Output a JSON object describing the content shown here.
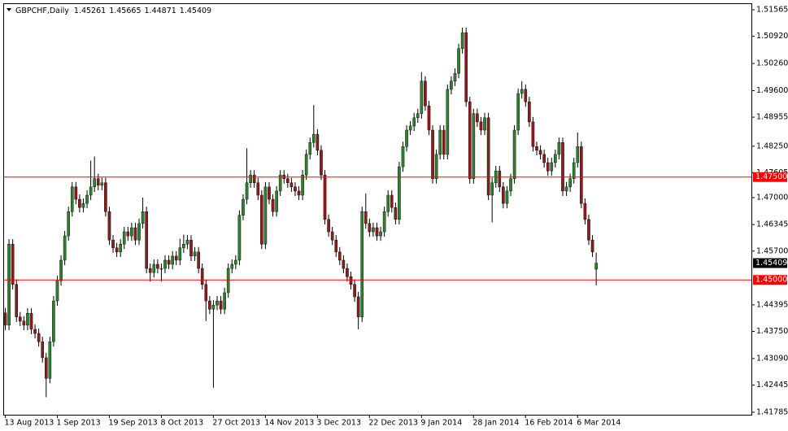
{
  "chart_data": {
    "type": "candlestick",
    "title": "GBPCHF,Daily",
    "categories": [
      "13 Aug 2013",
      null,
      null,
      null,
      null,
      null,
      null,
      null,
      null,
      null,
      null,
      null,
      null,
      null,
      "1 Sep 2013",
      null,
      null,
      null,
      null,
      null,
      null,
      null,
      null,
      null,
      null,
      null,
      null,
      null,
      "19 Sep 2013",
      null,
      null,
      null,
      null,
      null,
      null,
      null,
      null,
      null,
      null,
      null,
      null,
      null,
      "8 Oct 2013",
      null,
      null,
      null,
      null,
      null,
      null,
      null,
      null,
      null,
      null,
      null,
      null,
      null,
      "27 Oct 2013",
      null,
      null,
      null,
      null,
      null,
      null,
      null,
      null,
      null,
      null,
      null,
      null,
      null,
      "14 Nov 2013",
      null,
      null,
      null,
      null,
      null,
      null,
      null,
      null,
      null,
      null,
      null,
      null,
      null,
      "3 Dec 2013",
      null,
      null,
      null,
      null,
      null,
      null,
      null,
      null,
      null,
      null,
      null,
      null,
      null,
      "22 Dec 2013",
      null,
      null,
      null,
      null,
      null,
      null,
      null,
      null,
      null,
      null,
      null,
      null,
      null,
      "9 Jan 2014",
      null,
      null,
      null,
      null,
      null,
      null,
      null,
      null,
      null,
      null,
      null,
      null,
      null,
      "28 Jan 2014",
      null,
      null,
      null,
      null,
      null,
      null,
      null,
      null,
      null,
      null,
      null,
      null,
      null,
      "16 Feb 2014",
      null,
      null,
      null,
      null,
      null,
      null,
      null,
      null,
      null,
      null,
      null,
      null,
      null,
      "6 Mar 2014",
      null,
      null,
      null,
      null,
      null
    ],
    "open": [
      1.442,
      1.439,
      1.4587,
      1.4489,
      1.441,
      1.44,
      1.439,
      1.4419,
      1.438,
      1.437,
      1.435,
      1.4311,
      1.4261,
      1.435,
      1.4449,
      1.4498,
      1.4548,
      1.4607,
      1.4666,
      1.4726,
      1.4696,
      1.4676,
      1.4686,
      1.4706,
      1.4726,
      1.4746,
      1.473,
      1.4736,
      1.4666,
      1.4597,
      1.4578,
      1.4568,
      1.4587,
      1.4617,
      1.4607,
      1.4627,
      1.4597,
      1.4637,
      1.4666,
      1.4528,
      1.4518,
      1.4538,
      1.4528,
      1.4528,
      1.4548,
      1.4538,
      1.4558,
      1.4548,
      1.4578,
      1.4587,
      1.4597,
      1.4558,
      1.4568,
      1.4528,
      1.4489,
      1.4449,
      1.4429,
      1.4439,
      1.4449,
      1.4429,
      1.4469,
      1.4528,
      1.4538,
      1.4548,
      1.4657,
      1.4696,
      1.4736,
      1.4755,
      1.4736,
      1.4706,
      1.4587,
      1.4726,
      1.4696,
      1.4666,
      1.4716,
      1.4755,
      1.4746,
      1.4736,
      1.4726,
      1.4716,
      1.4706,
      1.4755,
      1.4805,
      1.4834,
      1.4854,
      1.4815,
      1.4755,
      1.4647,
      1.4617,
      1.4597,
      1.4568,
      1.4548,
      1.4528,
      1.4508,
      1.4489,
      1.4459,
      1.441,
      1.4666,
      1.4637,
      1.4617,
      1.4627,
      1.4607,
      1.4617,
      1.4666,
      1.4706,
      1.4676,
      1.4647,
      1.4775,
      1.4824,
      1.4864,
      1.4874,
      1.4894,
      1.4904,
      1.4983,
      1.4923,
      1.4864,
      1.4746,
      1.4805,
      1.4864,
      1.4805,
      1.4963,
      1.4983,
      1.5002,
      1.5062,
      1.5101,
      1.4933,
      1.4746,
      1.4904,
      1.4884,
      1.4864,
      1.4894,
      1.4706,
      1.4736,
      1.4765,
      1.4726,
      1.4686,
      1.4716,
      1.4746,
      1.4864,
      1.4953,
      1.4963,
      1.4933,
      1.4884,
      1.4824,
      1.4815,
      1.4805,
      1.4785,
      1.4765,
      1.4785,
      1.4805,
      1.4834,
      1.4716,
      1.4726,
      1.4746,
      1.4785,
      1.4824,
      1.4686,
      1.4647,
      1.4597,
      1.45261
    ],
    "high": [
      1.4432,
      1.4599,
      1.4599,
      1.4501,
      1.4422,
      1.4412,
      1.4431,
      1.4431,
      1.4392,
      1.4382,
      1.4362,
      1.4323,
      1.4362,
      1.4461,
      1.451,
      1.456,
      1.4619,
      1.4678,
      1.4738,
      1.4738,
      1.4708,
      1.4698,
      1.4718,
      1.479,
      1.48,
      1.4758,
      1.4748,
      1.4748,
      1.4678,
      1.4609,
      1.459,
      1.4599,
      1.4629,
      1.4629,
      1.4639,
      1.4639,
      1.4649,
      1.47,
      1.4678,
      1.454,
      1.455,
      1.455,
      1.454,
      1.456,
      1.456,
      1.457,
      1.457,
      1.46,
      1.461,
      1.4609,
      1.4609,
      1.458,
      1.458,
      1.454,
      1.4501,
      1.4461,
      1.4451,
      1.4461,
      1.4461,
      1.4481,
      1.454,
      1.455,
      1.456,
      1.4669,
      1.4708,
      1.482,
      1.4767,
      1.4767,
      1.4748,
      1.4718,
      1.4738,
      1.4738,
      1.4708,
      1.4728,
      1.4767,
      1.4767,
      1.4758,
      1.4748,
      1.4738,
      1.4728,
      1.4767,
      1.4817,
      1.4846,
      1.4925,
      1.4866,
      1.4827,
      1.4767,
      1.4659,
      1.4629,
      1.4609,
      1.458,
      1.456,
      1.454,
      1.452,
      1.4501,
      1.4471,
      1.4678,
      1.471,
      1.4649,
      1.4639,
      1.4639,
      1.4629,
      1.4678,
      1.4718,
      1.4718,
      1.4688,
      1.4787,
      1.4836,
      1.4876,
      1.4886,
      1.4906,
      1.4916,
      1.5005,
      1.4995,
      1.4935,
      1.4876,
      1.4817,
      1.4876,
      1.4876,
      1.4975,
      1.4995,
      1.5014,
      1.5074,
      1.5113,
      1.5113,
      1.4945,
      1.4916,
      1.4916,
      1.4896,
      1.4906,
      1.4906,
      1.4748,
      1.4777,
      1.4777,
      1.4738,
      1.4728,
      1.4758,
      1.4876,
      1.4965,
      1.4983,
      1.4975,
      1.4945,
      1.4896,
      1.4836,
      1.4827,
      1.4817,
      1.4797,
      1.4797,
      1.4817,
      1.4846,
      1.4846,
      1.4738,
      1.4758,
      1.4797,
      1.4858,
      1.4836,
      1.4698,
      1.4659,
      1.4609,
      1.45665
    ],
    "low": [
      1.4378,
      1.4378,
      1.4477,
      1.4398,
      1.4388,
      1.4378,
      1.4378,
      1.4368,
      1.4358,
      1.4338,
      1.4299,
      1.4215,
      1.4249,
      1.4338,
      1.4437,
      1.4486,
      1.4536,
      1.4595,
      1.4654,
      1.4684,
      1.4664,
      1.4664,
      1.4674,
      1.4694,
      1.4714,
      1.4718,
      1.4718,
      1.4654,
      1.4585,
      1.4566,
      1.4556,
      1.4556,
      1.4575,
      1.4595,
      1.4595,
      1.4585,
      1.4585,
      1.4625,
      1.4516,
      1.4496,
      1.4506,
      1.4516,
      1.4496,
      1.4516,
      1.4526,
      1.4526,
      1.4536,
      1.4536,
      1.4566,
      1.4575,
      1.4546,
      1.4546,
      1.4516,
      1.4477,
      1.44,
      1.4417,
      1.4238,
      1.4427,
      1.4417,
      1.4417,
      1.4457,
      1.4516,
      1.4526,
      1.4536,
      1.4645,
      1.4684,
      1.4724,
      1.4724,
      1.4694,
      1.4575,
      1.4575,
      1.4684,
      1.4654,
      1.4654,
      1.4704,
      1.4734,
      1.4724,
      1.4714,
      1.4704,
      1.4694,
      1.4694,
      1.4743,
      1.4793,
      1.4822,
      1.4803,
      1.4743,
      1.4635,
      1.4605,
      1.4585,
      1.4556,
      1.4536,
      1.4516,
      1.4496,
      1.4477,
      1.4447,
      1.438,
      1.4398,
      1.4625,
      1.4605,
      1.4605,
      1.4595,
      1.4595,
      1.4605,
      1.4654,
      1.4664,
      1.4635,
      1.4635,
      1.4763,
      1.4812,
      1.4852,
      1.4862,
      1.4882,
      1.4892,
      1.4911,
      1.4852,
      1.4734,
      1.4734,
      1.4793,
      1.4793,
      1.4793,
      1.4951,
      1.4971,
      1.499,
      1.505,
      1.4921,
      1.4734,
      1.4734,
      1.4872,
      1.4852,
      1.4852,
      1.4694,
      1.464,
      1.4724,
      1.4714,
      1.4674,
      1.4674,
      1.4704,
      1.4734,
      1.4852,
      1.4941,
      1.4921,
      1.4872,
      1.4812,
      1.4803,
      1.4793,
      1.4773,
      1.4753,
      1.4753,
      1.4773,
      1.4793,
      1.4704,
      1.4704,
      1.4714,
      1.4734,
      1.4773,
      1.4674,
      1.4635,
      1.4585,
      1.4556,
      1.44871
    ],
    "close": [
      1.439,
      1.4587,
      1.4489,
      1.441,
      1.44,
      1.439,
      1.4419,
      1.438,
      1.437,
      1.435,
      1.4311,
      1.4261,
      1.435,
      1.4449,
      1.4498,
      1.4548,
      1.4607,
      1.4666,
      1.4726,
      1.4696,
      1.4676,
      1.4686,
      1.4706,
      1.4726,
      1.4746,
      1.473,
      1.4736,
      1.4666,
      1.4597,
      1.4578,
      1.4568,
      1.4587,
      1.4617,
      1.4607,
      1.4627,
      1.4597,
      1.4637,
      1.4666,
      1.4528,
      1.4518,
      1.4538,
      1.4528,
      1.4528,
      1.4548,
      1.4538,
      1.4558,
      1.4548,
      1.4578,
      1.4587,
      1.4597,
      1.4558,
      1.4568,
      1.4528,
      1.4489,
      1.4449,
      1.4429,
      1.4439,
      1.4449,
      1.4429,
      1.4469,
      1.4528,
      1.4538,
      1.4548,
      1.4657,
      1.4696,
      1.4736,
      1.4755,
      1.4736,
      1.4706,
      1.4587,
      1.4726,
      1.4696,
      1.4666,
      1.4716,
      1.4755,
      1.4746,
      1.4736,
      1.4726,
      1.4716,
      1.4706,
      1.4755,
      1.4805,
      1.4834,
      1.4854,
      1.4815,
      1.4755,
      1.4647,
      1.4617,
      1.4597,
      1.4568,
      1.4548,
      1.4528,
      1.4508,
      1.4489,
      1.4459,
      1.441,
      1.4666,
      1.4637,
      1.4617,
      1.4627,
      1.4607,
      1.4617,
      1.4666,
      1.4706,
      1.4676,
      1.4647,
      1.4775,
      1.4824,
      1.4864,
      1.4874,
      1.4894,
      1.4904,
      1.4983,
      1.4923,
      1.4864,
      1.4746,
      1.4805,
      1.4864,
      1.4805,
      1.4963,
      1.4983,
      1.5002,
      1.5062,
      1.5101,
      1.4933,
      1.4746,
      1.4904,
      1.4884,
      1.4864,
      1.4894,
      1.4706,
      1.4736,
      1.4765,
      1.4726,
      1.4686,
      1.4716,
      1.4746,
      1.4864,
      1.4953,
      1.4963,
      1.4933,
      1.4884,
      1.4824,
      1.4815,
      1.4805,
      1.4785,
      1.4765,
      1.4785,
      1.4805,
      1.4834,
      1.4716,
      1.4726,
      1.4746,
      1.4785,
      1.4824,
      1.4686,
      1.4647,
      1.4597,
      1.4568,
      1.45409
    ],
    "up_color": "#2f7f2f",
    "down_color": "#8c1c1c",
    "wick_color": "#000000",
    "ylim": [
      1.41725,
      1.51703
    ],
    "yticks": [
      1.51565,
      {
        "value": 1.5092,
        "label": "1.50920"
      },
      {
        "value": 1.5026,
        "label": "1.50260"
      },
      {
        "value": 1.496,
        "label": "1.49600"
      },
      1.48955,
      {
        "value": 1.4825,
        "label": "1.48250"
      },
      1.47605,
      {
        "value": 1.47,
        "label": "1.47000"
      },
      1.46345,
      {
        "value": 1.457,
        "label": "1.45700"
      },
      1.44395,
      {
        "value": 1.4375,
        "label": "1.43750"
      },
      {
        "value": 1.4309,
        "label": "1.43090"
      },
      1.42445,
      1.41785
    ],
    "hlines": [
      {
        "value": 1.475,
        "label": "1.47500"
      },
      {
        "value": 1.45,
        "label": "1.45000"
      }
    ],
    "hline_color": "#ff0000",
    "grid": false
  }
}
